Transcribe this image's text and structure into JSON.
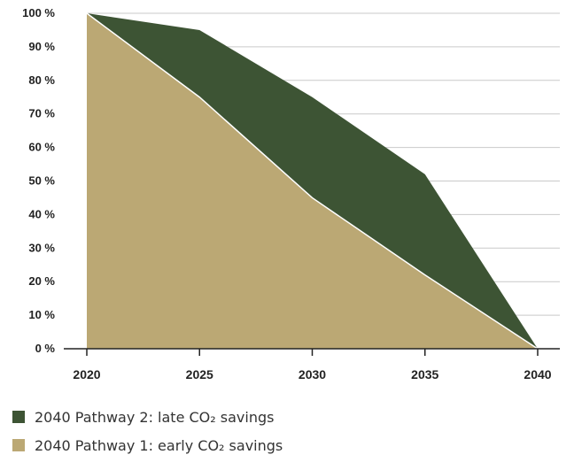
{
  "chart_data": {
    "type": "area",
    "x": [
      "2020",
      "2025",
      "2030",
      "2035",
      "2040"
    ],
    "y_ticks": [
      "0 %",
      "10 %",
      "20 %",
      "30 %",
      "40 %",
      "50 %",
      "60 %",
      "70 %",
      "80 %",
      "90 %",
      "100 %"
    ],
    "ylim": [
      0,
      100
    ],
    "grid": true,
    "legend_position": "bottom-left",
    "series": [
      {
        "name": "2040 Pathway 2: late CO₂ savings",
        "color": "#3d5434",
        "values": [
          100,
          95,
          75,
          52,
          0
        ]
      },
      {
        "name": "2040 Pathway 1: early CO₂ savings",
        "color": "#bba874",
        "values": [
          100,
          75,
          45,
          22,
          0
        ]
      }
    ]
  }
}
